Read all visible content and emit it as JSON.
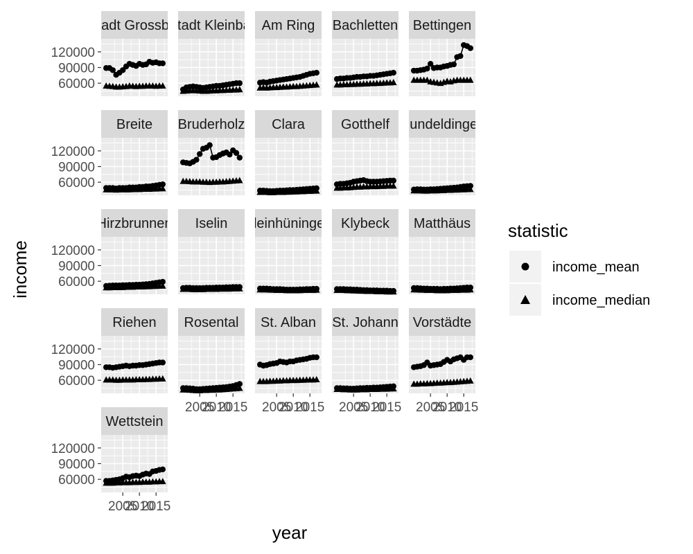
{
  "chart_data": {
    "type": "scatter",
    "xlabel": "year",
    "ylabel": "income",
    "x_ticks": [
      2005,
      2010,
      2015
    ],
    "x_tick_labels": [
      "2005",
      "2010",
      "2015"
    ],
    "y_ticks": [
      60000,
      90000,
      120000
    ],
    "y_tick_labels": [
      "60000",
      "90000",
      "120000"
    ],
    "xlim": [
      1998.5,
      2018.5
    ],
    "ylim": [
      35000,
      145000
    ],
    "grid": true,
    "facet_ncol": 5,
    "legend": {
      "title": "statistic",
      "placement": "right",
      "entries": [
        {
          "label": "income_mean",
          "shape": "circle"
        },
        {
          "label": "income_median",
          "shape": "triangle"
        }
      ]
    },
    "years": [
      2000,
      2001,
      2002,
      2003,
      2004,
      2005,
      2006,
      2007,
      2008,
      2009,
      2010,
      2011,
      2012,
      2013,
      2014,
      2015,
      2016,
      2017
    ],
    "panels": [
      {
        "strip": "Altstadt Grossbasel",
        "mean": [
          89000,
          89000,
          85000,
          76000,
          80000,
          85000,
          92000,
          97000,
          95000,
          93000,
          97000,
          95000,
          96000,
          101000,
          99000,
          100000,
          98000,
          98000
        ],
        "median": [
          55000,
          54500,
          54000,
          53000,
          53000,
          53500,
          54000,
          55000,
          54500,
          54000,
          54500,
          54500,
          55000,
          55000,
          55000,
          54500,
          55000,
          55000
        ]
      },
      {
        "strip": "Altstadt Kleinbasel",
        "mean": [
          48000,
          52000,
          53000,
          54000,
          53000,
          52000,
          51000,
          52000,
          53000,
          54000,
          55000,
          55000,
          56000,
          57000,
          58000,
          59000,
          60000,
          60000
        ],
        "median": [
          45000,
          45500,
          46000,
          46500,
          46000,
          45500,
          45000,
          45000,
          45500,
          46000,
          46000,
          46500,
          46500,
          47000,
          47000,
          47500,
          47500,
          48000
        ]
      },
      {
        "strip": "Am Ring",
        "mean": [
          61000,
          62000,
          61000,
          63000,
          64000,
          65000,
          66000,
          67000,
          68000,
          69000,
          70000,
          71000,
          72000,
          74000,
          76000,
          78000,
          79000,
          80000
        ],
        "median": [
          51000,
          51500,
          51000,
          51500,
          52000,
          52000,
          52500,
          53000,
          53000,
          53500,
          54000,
          54000,
          54500,
          55000,
          55500,
          56000,
          56500,
          57000
        ]
      },
      {
        "strip": "Bachletten",
        "mean": [
          68000,
          69000,
          69000,
          70000,
          70000,
          71000,
          72000,
          72000,
          73000,
          73000,
          74000,
          74000,
          75000,
          76000,
          77000,
          78000,
          79000,
          80000
        ],
        "median": [
          57000,
          57000,
          57500,
          57500,
          58000,
          58000,
          58500,
          58500,
          59000,
          59000,
          59500,
          59500,
          60000,
          60000,
          60500,
          61000,
          61000,
          61500
        ]
      },
      {
        "strip": "Bettingen",
        "mean": [
          84000,
          84000,
          85000,
          86000,
          88000,
          97000,
          89000,
          90000,
          90000,
          92000,
          93000,
          95000,
          96000,
          110000,
          112000,
          133000,
          131000,
          127000
        ],
        "median": [
          66000,
          66000,
          66000,
          66000,
          66000,
          63000,
          62000,
          61000,
          60000,
          62000,
          64000,
          63000,
          65000,
          66000,
          66000,
          66000,
          66000,
          66000
        ]
      },
      {
        "strip": "Breite",
        "mean": [
          49000,
          49000,
          49000,
          48000,
          49000,
          49000,
          49000,
          50000,
          50000,
          50000,
          51000,
          51000,
          52000,
          52000,
          53000,
          54000,
          55000,
          56000
        ],
        "median": [
          46000,
          46000,
          46000,
          45500,
          46000,
          46000,
          46000,
          46000,
          46500,
          46500,
          46500,
          47000,
          47000,
          47000,
          47500,
          47500,
          48000,
          48000
        ]
      },
      {
        "strip": "Bruderholz",
        "mean": [
          98000,
          97000,
          96000,
          99000,
          103000,
          114000,
          124000,
          126000,
          131000,
          107000,
          108000,
          112000,
          115000,
          117000,
          113000,
          121000,
          116000,
          107000
        ],
        "median": [
          62000,
          62000,
          61500,
          61000,
          61000,
          61000,
          60500,
          60500,
          60000,
          60500,
          60500,
          61000,
          61000,
          61500,
          62000,
          62500,
          63000,
          63500
        ]
      },
      {
        "strip": "Clara",
        "mean": [
          44000,
          44000,
          43500,
          43000,
          43000,
          43500,
          44000,
          44000,
          44500,
          45000,
          45000,
          45500,
          46000,
          46500,
          47000,
          47500,
          48000,
          48500
        ],
        "median": [
          41000,
          41000,
          41000,
          40500,
          40500,
          41000,
          41000,
          41000,
          41500,
          41500,
          42000,
          42000,
          42500,
          42500,
          43000,
          43000,
          43500,
          43500
        ]
      },
      {
        "strip": "Gotthelf",
        "mean": [
          56000,
          57000,
          57000,
          58000,
          59000,
          61000,
          62000,
          63000,
          64000,
          62000,
          61000,
          61000,
          61000,
          61500,
          62000,
          62500,
          63000,
          63000
        ],
        "median": [
          49000,
          49000,
          49500,
          49500,
          50000,
          50500,
          51000,
          51000,
          51500,
          51500,
          52000,
          52000,
          52000,
          52500,
          52500,
          53000,
          53000,
          53000
        ]
      },
      {
        "strip": "Gundeldingen",
        "mean": [
          46000,
          46500,
          46500,
          46000,
          46000,
          46500,
          46500,
          47000,
          47500,
          48000,
          48500,
          49000,
          49500,
          50000,
          51000,
          52000,
          52500,
          53000
        ],
        "median": [
          44000,
          44000,
          44000,
          43500,
          43500,
          44000,
          44000,
          44000,
          44500,
          44500,
          45000,
          45000,
          45500,
          45500,
          46000,
          46000,
          46500,
          46500
        ]
      },
      {
        "strip": "Hirzbrunnen",
        "mean": [
          51000,
          51500,
          52000,
          52000,
          52000,
          52500,
          52500,
          53000,
          53000,
          53500,
          53500,
          54000,
          54500,
          55000,
          56000,
          57000,
          58000,
          59000
        ],
        "median": [
          48000,
          48000,
          48500,
          48500,
          48500,
          48500,
          49000,
          49000,
          49000,
          49500,
          49500,
          49500,
          50000,
          50000,
          50500,
          50500,
          51000,
          51000
        ]
      },
      {
        "strip": "Iselin",
        "mean": [
          47000,
          47500,
          47500,
          47000,
          47000,
          47000,
          47000,
          47500,
          47500,
          47500,
          48000,
          48000,
          48000,
          48500,
          48500,
          49000,
          49000,
          49000
        ],
        "median": [
          45000,
          45000,
          45000,
          44500,
          44500,
          44500,
          44500,
          45000,
          45000,
          45000,
          45000,
          45500,
          45500,
          45500,
          45500,
          46000,
          46000,
          46000
        ]
      },
      {
        "strip": "Kleinhüningen",
        "mean": [
          46000,
          46000,
          46000,
          45500,
          45000,
          45000,
          45000,
          44500,
          44000,
          44000,
          44000,
          44000,
          44500,
          44500,
          45000,
          45000,
          45500,
          45500
        ],
        "median": [
          44000,
          44000,
          44000,
          43500,
          43500,
          43000,
          43000,
          43000,
          42500,
          42500,
          42500,
          42500,
          42500,
          43000,
          43000,
          43000,
          43000,
          43500
        ]
      },
      {
        "strip": "Klybeck",
        "mean": [
          45000,
          45000,
          45000,
          44500,
          44500,
          44000,
          44000,
          43500,
          43000,
          43000,
          42500,
          42500,
          42500,
          42000,
          42000,
          42000,
          41500,
          41500
        ],
        "median": [
          43000,
          43000,
          43000,
          42500,
          42500,
          42000,
          42000,
          41500,
          41500,
          41000,
          41000,
          41000,
          40500,
          40500,
          40500,
          40000,
          40000,
          40000
        ]
      },
      {
        "strip": "Matthäus",
        "mean": [
          47000,
          47000,
          46500,
          46000,
          46000,
          45500,
          45500,
          45500,
          45000,
          45500,
          45500,
          46000,
          46000,
          46500,
          47000,
          47500,
          48000,
          48000
        ],
        "median": [
          44000,
          44000,
          43500,
          43500,
          43000,
          43000,
          43000,
          42500,
          42500,
          42500,
          42500,
          43000,
          43000,
          43000,
          43500,
          43500,
          43500,
          44000
        ]
      },
      {
        "strip": "Riehen",
        "mean": [
          85000,
          85000,
          84000,
          85000,
          86000,
          87000,
          88000,
          87000,
          88000,
          88000,
          89000,
          89000,
          90000,
          91000,
          92000,
          93000,
          94000,
          94000
        ],
        "median": [
          61000,
          61000,
          61000,
          60500,
          60500,
          61000,
          61000,
          61000,
          61000,
          61500,
          61500,
          61500,
          62000,
          62000,
          62500,
          62500,
          63000,
          63000
        ]
      },
      {
        "strip": "Rosental",
        "mean": [
          45000,
          45000,
          44500,
          44000,
          43000,
          43000,
          43500,
          44000,
          44500,
          45000,
          45500,
          46000,
          46500,
          47000,
          48000,
          49000,
          51000,
          53000
        ],
        "median": [
          42000,
          42000,
          41500,
          41000,
          40500,
          40500,
          41000,
          41000,
          41500,
          41500,
          42000,
          42000,
          42500,
          43000,
          43500,
          44000,
          44500,
          45000
        ]
      },
      {
        "strip": "St. Alban",
        "mean": [
          90000,
          88000,
          89000,
          91000,
          92000,
          93000,
          96000,
          95000,
          94000,
          96000,
          96000,
          98000,
          99000,
          100000,
          101000,
          103000,
          104000,
          104000
        ],
        "median": [
          58000,
          58000,
          58000,
          58500,
          58500,
          59000,
          59000,
          59500,
          59500,
          60000,
          60000,
          60000,
          60500,
          60500,
          61000,
          61000,
          61000,
          61500
        ]
      },
      {
        "strip": "St. Johann",
        "mean": [
          45000,
          45000,
          44500,
          44500,
          44000,
          44000,
          44500,
          45000,
          45000,
          45500,
          45500,
          46000,
          46000,
          46500,
          47000,
          47500,
          48000,
          48500
        ],
        "median": [
          43000,
          43000,
          42500,
          42500,
          42000,
          42000,
          42000,
          42500,
          42500,
          42500,
          43000,
          43000,
          43000,
          43500,
          43500,
          43500,
          44000,
          44000
        ]
      },
      {
        "strip": "Vorstädte",
        "mean": [
          85000,
          86000,
          87000,
          89000,
          94000,
          88000,
          89000,
          90000,
          91000,
          95000,
          99000,
          96000,
          100000,
          102000,
          104000,
          99000,
          104000,
          104000
        ],
        "median": [
          53000,
          53000,
          53500,
          53500,
          54000,
          54000,
          54500,
          55000,
          55000,
          55500,
          56000,
          56000,
          56500,
          57000,
          57500,
          58000,
          58500,
          59000
        ]
      },
      {
        "strip": "Wettstein",
        "mean": [
          57000,
          57000,
          58000,
          59000,
          60000,
          62000,
          65000,
          64000,
          66000,
          67000,
          66000,
          69000,
          71000,
          70000,
          75000,
          76000,
          78000,
          79000
        ],
        "median": [
          53000,
          53000,
          53000,
          53500,
          53500,
          54000,
          54000,
          54000,
          54500,
          54500,
          54500,
          55000,
          55000,
          55000,
          55500,
          55500,
          56000,
          56000
        ]
      }
    ]
  }
}
